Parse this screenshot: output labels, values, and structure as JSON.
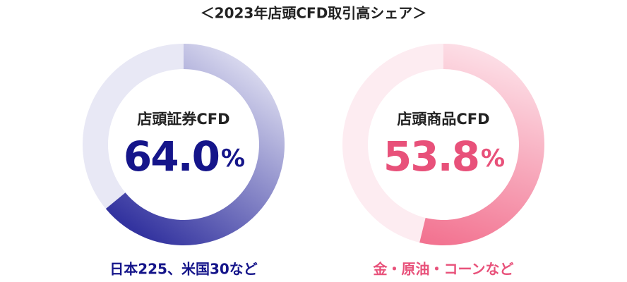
{
  "title": "＜2023年店頭CFD取引高シェア＞",
  "chart_data": [
    {
      "type": "donut",
      "title": "店頭証券CFD",
      "values": [
        64.0
      ],
      "value_labels": [
        "64.0%"
      ],
      "caption": "日本225、米国30など",
      "color": [
        "#dcdcf0",
        "#33339f"
      ],
      "track_color": "#e8e8f5",
      "text_color": "#15158a"
    },
    {
      "type": "donut",
      "title": "店頭商品CFD",
      "values": [
        53.8
      ],
      "value_labels": [
        "53.8%"
      ],
      "caption": "金・原油・コーンなど",
      "color": [
        "#fde3ea",
        "#f2718f"
      ],
      "track_color": "#fdecf1",
      "text_color": "#e8517a"
    }
  ]
}
